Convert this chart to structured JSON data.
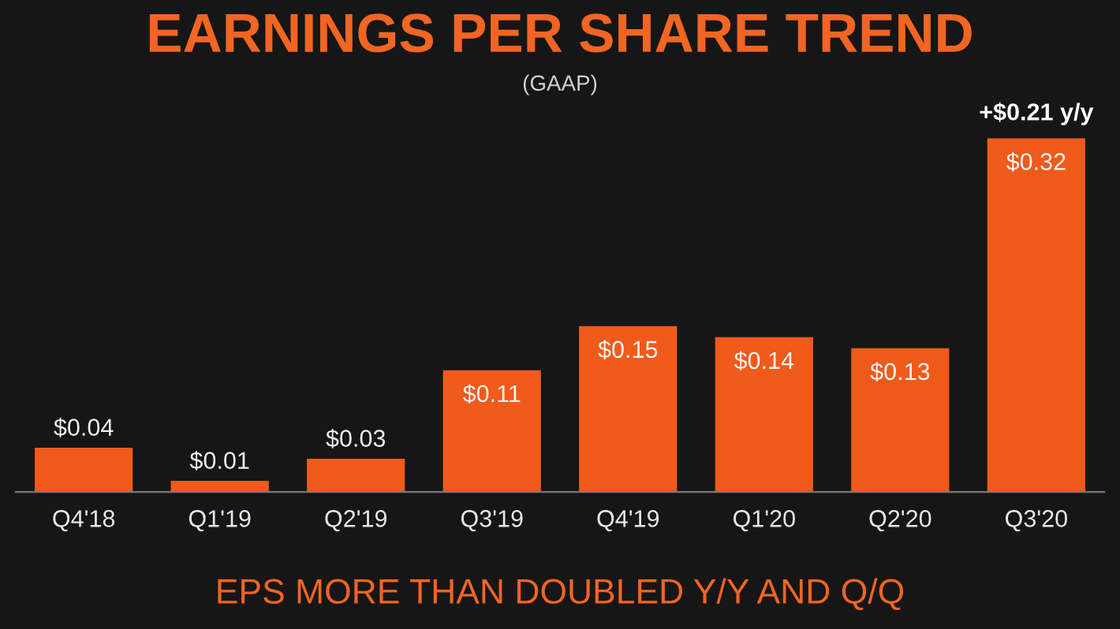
{
  "chart_data": {
    "type": "bar",
    "title": "EARNINGS PER SHARE TREND",
    "subtitle": "(GAAP)",
    "categories": [
      "Q4'18",
      "Q1'19",
      "Q2'19",
      "Q3'19",
      "Q4'19",
      "Q1'20",
      "Q2'20",
      "Q3'20"
    ],
    "values": [
      0.04,
      0.01,
      0.03,
      0.11,
      0.15,
      0.14,
      0.13,
      0.32
    ],
    "value_labels": [
      "$0.04",
      "$0.01",
      "$0.03",
      "$0.11",
      "$0.15",
      "$0.14",
      "$0.13",
      "$0.32"
    ],
    "color": "#f05a1a",
    "annotations": [
      {
        "text": "+$0.21 y/y",
        "x": "Q3'20",
        "y": 0.32
      },
      "EPS MORE THAN DOUBLED Y/Y AND Q/Q"
    ],
    "grid": false,
    "legend": false
  }
}
